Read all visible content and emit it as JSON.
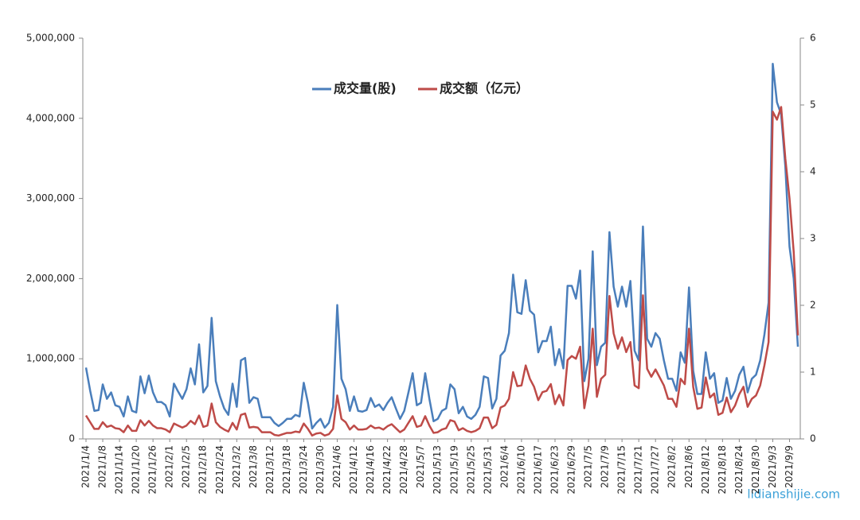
{
  "chart_data": {
    "type": "line",
    "categories": [
      "2021/1/4",
      null,
      null,
      null,
      "2021/1/8",
      null,
      null,
      null,
      "2021/1/14",
      null,
      null,
      null,
      "2021/1/20",
      null,
      null,
      null,
      "2021/1/26",
      null,
      null,
      null,
      "2021/2/1",
      null,
      null,
      null,
      "2021/2/5",
      null,
      null,
      null,
      "2021/2/18",
      null,
      null,
      null,
      "2021/2/24",
      null,
      null,
      null,
      "2021/3/2",
      null,
      null,
      null,
      "2021/3/8",
      null,
      null,
      null,
      "2021/3/12",
      null,
      null,
      null,
      "2021/3/18",
      null,
      null,
      null,
      "2021/3/24",
      null,
      null,
      null,
      "2021/3/30",
      null,
      null,
      null,
      "2021/4/6",
      null,
      null,
      null,
      "2021/4/12",
      null,
      null,
      null,
      "2021/4/16",
      null,
      null,
      null,
      "2021/4/22",
      null,
      null,
      null,
      "2021/4/28",
      null,
      null,
      null,
      "2021/5/7",
      null,
      null,
      null,
      "2021/5/13",
      null,
      null,
      null,
      "2021/5/19",
      null,
      null,
      null,
      "2021/5/25",
      null,
      null,
      null,
      "2021/5/31",
      null,
      null,
      null,
      "2021/6/4",
      null,
      null,
      null,
      "2021/6/10",
      null,
      null,
      null,
      "2021/6/17",
      null,
      null,
      null,
      "2021/6/23",
      null,
      null,
      null,
      "2021/6/29",
      null,
      null,
      null,
      "2021/7/5",
      null,
      null,
      null,
      "2021/7/9",
      null,
      null,
      null,
      "2021/7/15",
      null,
      null,
      null,
      "2021/7/21",
      null,
      null,
      null,
      "2021/7/27",
      null,
      null,
      null,
      "2021/8/2",
      null,
      null,
      null,
      "2021/8/6",
      null,
      null,
      null,
      "2021/8/12",
      null,
      null,
      null,
      "2021/8/18",
      null,
      null,
      null,
      "2021/8/24",
      null,
      null,
      null,
      "2021/8/30",
      null,
      null,
      null,
      "2021/9/3",
      null,
      null,
      null,
      "2021/9/9",
      null,
      null
    ],
    "series": [
      {
        "name": "成交量(股)",
        "color": "#4a7ebb",
        "values": [
          890000,
          600000,
          350000,
          360000,
          680000,
          500000,
          580000,
          420000,
          400000,
          280000,
          530000,
          350000,
          330000,
          780000,
          570000,
          790000,
          580000,
          460000,
          460000,
          420000,
          280000,
          690000,
          590000,
          500000,
          620000,
          880000,
          680000,
          1180000,
          580000,
          660000,
          1510000,
          720000,
          530000,
          380000,
          300000,
          690000,
          400000,
          980000,
          1010000,
          450000,
          520000,
          500000,
          270000,
          270000,
          270000,
          200000,
          160000,
          200000,
          250000,
          250000,
          300000,
          280000,
          700000,
          450000,
          130000,
          200000,
          250000,
          140000,
          200000,
          400000,
          1670000,
          750000,
          620000,
          350000,
          530000,
          350000,
          340000,
          360000,
          510000,
          400000,
          430000,
          360000,
          450000,
          520000,
          380000,
          250000,
          350000,
          580000,
          820000,
          420000,
          450000,
          820000,
          500000,
          220000,
          250000,
          350000,
          380000,
          680000,
          620000,
          320000,
          400000,
          280000,
          250000,
          300000,
          400000,
          780000,
          760000,
          380000,
          500000,
          1040000,
          1100000,
          1320000,
          2050000,
          1580000,
          1560000,
          1980000,
          1600000,
          1550000,
          1080000,
          1220000,
          1220000,
          1400000,
          920000,
          1120000,
          880000,
          1910000,
          1910000,
          1750000,
          2100000,
          720000,
          1000000,
          2340000,
          920000,
          1150000,
          1200000,
          2580000,
          1900000,
          1650000,
          1900000,
          1650000,
          1970000,
          1100000,
          980000,
          2650000,
          1250000,
          1150000,
          1320000,
          1250000,
          980000,
          750000,
          750000,
          600000,
          1080000,
          950000,
          1890000,
          850000,
          560000,
          560000,
          1080000,
          750000,
          820000,
          450000,
          480000,
          760000,
          500000,
          600000,
          800000,
          900000,
          580000,
          750000,
          800000,
          980000,
          1300000,
          1700000,
          4680000,
          4200000,
          4050000,
          3400000,
          2400000,
          2000000,
          1150000
        ]
      },
      {
        "name": "成交额（亿元）",
        "color": "#be4b48",
        "axis": "y2",
        "values": [
          0.35,
          0.25,
          0.15,
          0.15,
          0.25,
          0.18,
          0.2,
          0.16,
          0.15,
          0.1,
          0.2,
          0.12,
          0.12,
          0.28,
          0.2,
          0.27,
          0.2,
          0.16,
          0.16,
          0.14,
          0.1,
          0.23,
          0.2,
          0.17,
          0.2,
          0.27,
          0.22,
          0.35,
          0.18,
          0.2,
          0.53,
          0.25,
          0.18,
          0.14,
          0.11,
          0.24,
          0.14,
          0.36,
          0.38,
          0.17,
          0.18,
          0.17,
          0.1,
          0.1,
          0.1,
          0.06,
          0.05,
          0.07,
          0.09,
          0.09,
          0.11,
          0.1,
          0.23,
          0.15,
          0.05,
          0.08,
          0.09,
          0.05,
          0.07,
          0.15,
          0.65,
          0.3,
          0.25,
          0.14,
          0.2,
          0.14,
          0.14,
          0.15,
          0.2,
          0.16,
          0.17,
          0.14,
          0.19,
          0.22,
          0.16,
          0.1,
          0.14,
          0.24,
          0.34,
          0.18,
          0.2,
          0.34,
          0.2,
          0.09,
          0.1,
          0.14,
          0.16,
          0.28,
          0.26,
          0.13,
          0.16,
          0.12,
          0.1,
          0.12,
          0.16,
          0.32,
          0.32,
          0.16,
          0.21,
          0.47,
          0.5,
          0.6,
          1.0,
          0.79,
          0.8,
          1.1,
          0.9,
          0.78,
          0.58,
          0.7,
          0.72,
          0.82,
          0.52,
          0.66,
          0.5,
          1.18,
          1.24,
          1.2,
          1.38,
          0.46,
          0.8,
          1.65,
          0.63,
          0.9,
          0.96,
          2.14,
          1.58,
          1.35,
          1.52,
          1.3,
          1.45,
          0.8,
          0.76,
          2.15,
          1.05,
          0.93,
          1.04,
          0.92,
          0.8,
          0.6,
          0.6,
          0.48,
          0.9,
          0.82,
          1.65,
          0.78,
          0.45,
          0.47,
          0.92,
          0.62,
          0.68,
          0.36,
          0.39,
          0.62,
          0.4,
          0.5,
          0.67,
          0.78,
          0.48,
          0.6,
          0.65,
          0.8,
          1.1,
          1.45,
          4.9,
          4.78,
          4.97,
          4.2,
          3.6,
          2.8,
          1.55
        ]
      }
    ],
    "ylim": [
      0,
      5000000
    ],
    "yticks": [
      0,
      {
        "value": 1000000,
        "label": "1,000,000"
      },
      {
        "value": 2000000,
        "label": "2,000,000"
      },
      {
        "value": 3000000,
        "label": "3,000,000"
      },
      {
        "value": 4000000,
        "label": "4,000,000"
      },
      {
        "value": 5000000,
        "label": "5,000,000"
      }
    ],
    "y2lim": [
      0,
      6
    ],
    "y2ticks": [
      0,
      1,
      2,
      3,
      4,
      5,
      6
    ],
    "grid": false,
    "legend": "top",
    "watermark": "lidianshijie.com"
  }
}
